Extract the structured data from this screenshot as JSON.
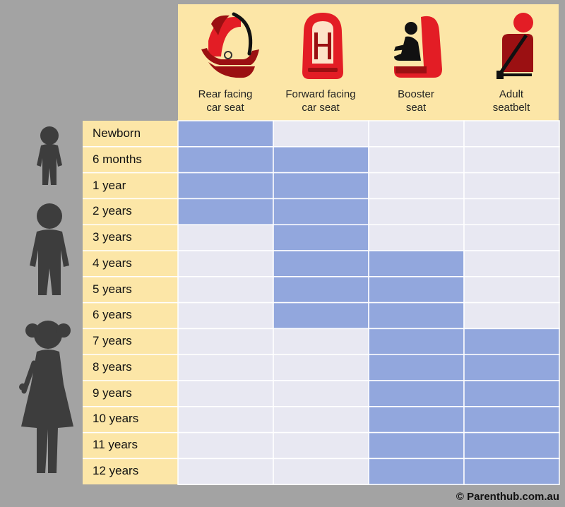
{
  "colors": {
    "page_bg": "#a3a3a3",
    "header_bg": "#fce6a7",
    "active_cell": "#92a7dd",
    "inactive_cell": "#e8e8f2",
    "grid_line": "#ffffff",
    "seat_red": "#e31d25",
    "seat_dark": "#9b1012",
    "silhouette": "#3d3d3d"
  },
  "chart_data": {
    "type": "table",
    "columns": [
      {
        "label": "Rear facing car seat",
        "line1": "Rear facing",
        "line2": "car seat",
        "icon": "rear-facing-seat-icon"
      },
      {
        "label": "Forward facing car seat",
        "line1": "Forward facing",
        "line2": "car seat",
        "icon": "forward-facing-seat-icon"
      },
      {
        "label": "Booster seat",
        "line1": "Booster",
        "line2": "seat",
        "icon": "booster-seat-icon"
      },
      {
        "label": "Adult seatbelt",
        "line1": "Adult",
        "line2": "seatbelt",
        "icon": "adult-seatbelt-icon"
      }
    ],
    "rows": [
      "Newborn",
      "6 months",
      "1 year",
      "2 years",
      "3 years",
      "4 years",
      "5 years",
      "6 years",
      "7 years",
      "8 years",
      "9 years",
      "10 years",
      "11 years",
      "12 years"
    ],
    "matrix": [
      [
        1,
        0,
        0,
        0
      ],
      [
        1,
        1,
        0,
        0
      ],
      [
        1,
        1,
        0,
        0
      ],
      [
        1,
        1,
        0,
        0
      ],
      [
        0,
        1,
        0,
        0
      ],
      [
        0,
        1,
        1,
        0
      ],
      [
        0,
        1,
        1,
        0
      ],
      [
        0,
        1,
        1,
        0
      ],
      [
        0,
        0,
        1,
        1
      ],
      [
        0,
        0,
        1,
        1
      ],
      [
        0,
        0,
        1,
        1
      ],
      [
        0,
        0,
        1,
        1
      ],
      [
        0,
        0,
        1,
        1
      ],
      [
        0,
        0,
        1,
        1
      ]
    ],
    "legend": "none"
  },
  "silhouettes": [
    "baby-silhouette-icon",
    "toddler-silhouette-icon",
    "child-silhouette-icon"
  ],
  "footer": {
    "credit": "© Parenthub.com.au"
  }
}
